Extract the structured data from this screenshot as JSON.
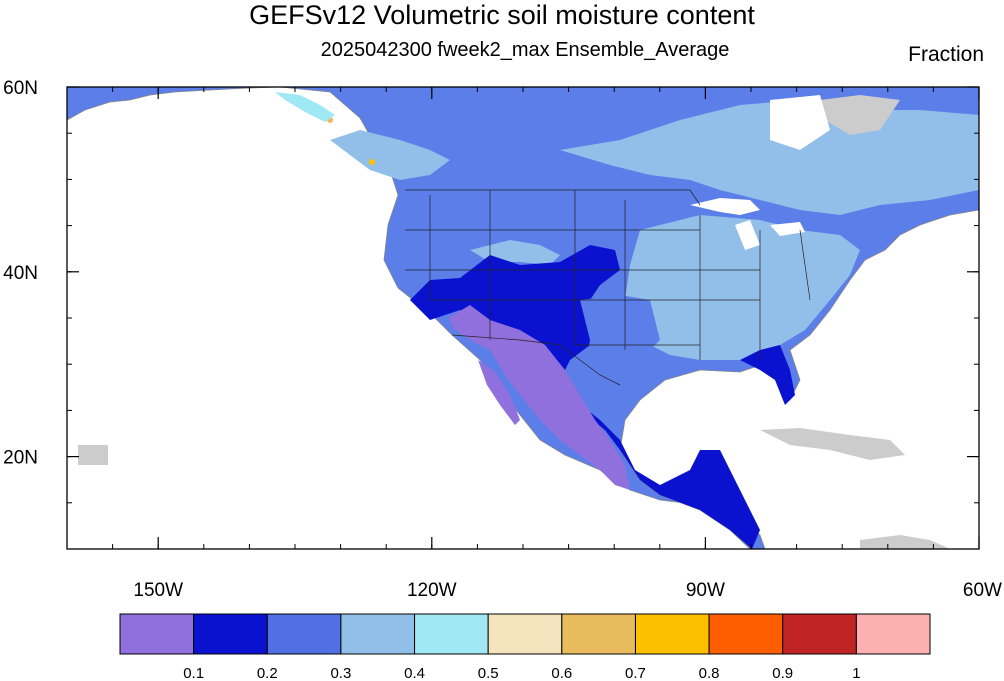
{
  "title": "GEFSv12 Volumetric soil moisture content",
  "subtitle": "2025042300 fweek2_max Ensemble_Average",
  "units": "Fraction",
  "map": {
    "projection": "cylindrical-equidistant",
    "lon_range": [
      -160,
      -60
    ],
    "lat_range": [
      10,
      60
    ],
    "lon_ticks": [
      {
        "value": -150,
        "label": "150W"
      },
      {
        "value": -120,
        "label": "120W"
      },
      {
        "value": -90,
        "label": "90W"
      },
      {
        "value": -60,
        "label": "60W"
      }
    ],
    "lat_ticks": [
      {
        "value": 60,
        "label": "60N"
      },
      {
        "value": 40,
        "label": "40N"
      },
      {
        "value": 20,
        "label": "20N"
      }
    ],
    "colors": {
      "land_default": "#5b7ee8",
      "missing": "#cccccc",
      "border": "#222222"
    }
  },
  "colorbar": {
    "levels": [
      "0.1",
      "0.2",
      "0.3",
      "0.4",
      "0.5",
      "0.6",
      "0.7",
      "0.8",
      "0.9",
      "1"
    ],
    "colors": [
      "#9070dc",
      "#0b12cf",
      "#5170e4",
      "#92bfea",
      "#a0e8f4",
      "#f4e4be",
      "#e8bc5c",
      "#fcc000",
      "#fc5e00",
      "#c02424",
      "#fcb0b0"
    ]
  }
}
